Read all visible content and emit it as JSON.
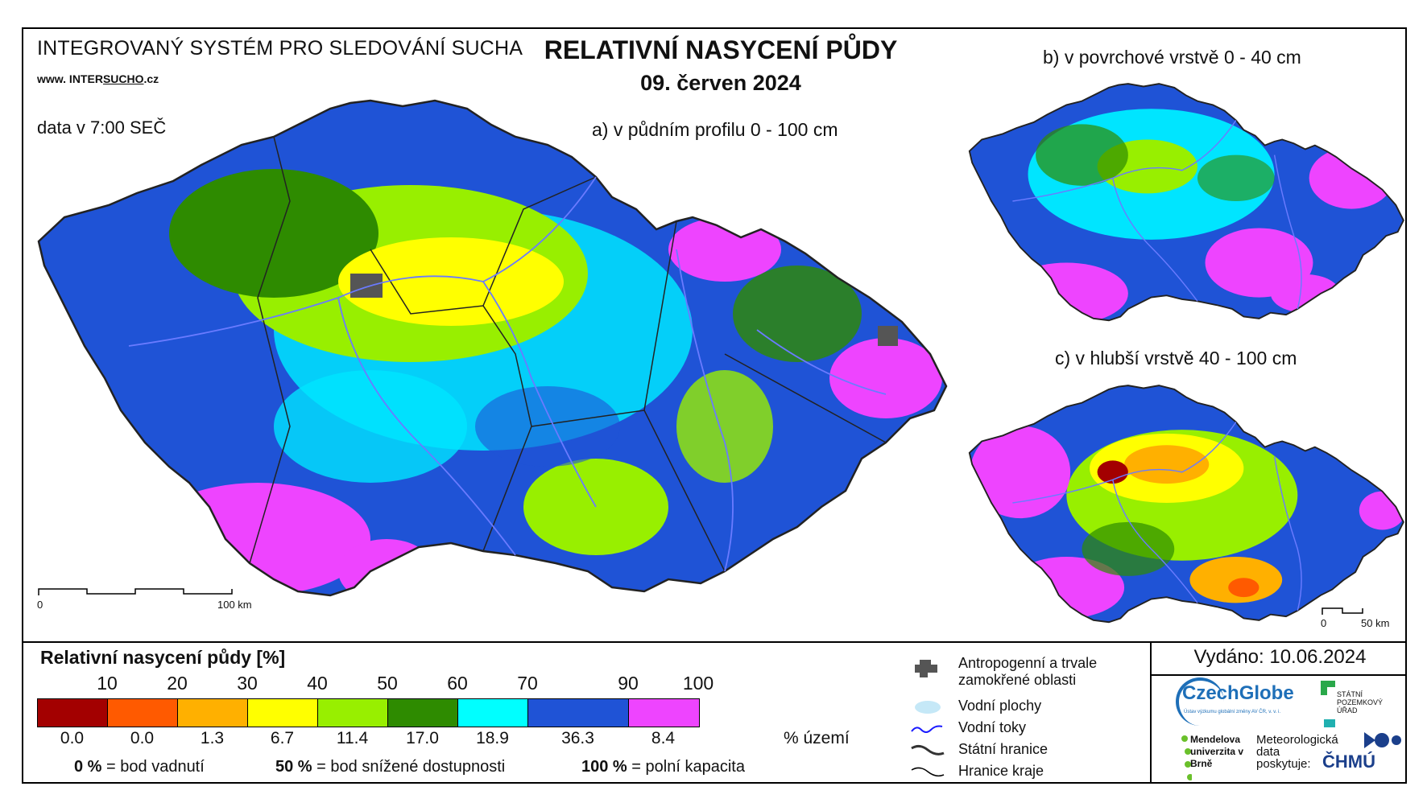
{
  "header": {
    "system_name": "INTEGROVANÝ SYSTÉM PRO SLEDOVÁNÍ SUCHA",
    "web_prefix": "www. INTER",
    "web_underlined": "SUCHO",
    "web_suffix": ".cz",
    "data_time": "data v 7:00 SEČ"
  },
  "title": "RELATIVNÍ NASYCENÍ PŮDY",
  "date": "09. červen 2024",
  "maps": {
    "a_label": "a) v půdním profilu 0 - 100 cm",
    "b_label": "b) v povrchové vrstvě 0 - 40 cm",
    "c_label": "c) v hlubší vrstvě 40 - 100 cm",
    "scale_a_start": "0",
    "scale_a_end": "100 km",
    "scale_c_start": "0",
    "scale_c_end": "50 km"
  },
  "legend": {
    "title": "Relativní nasycení půdy [%]",
    "tick_labels": [
      "10",
      "20",
      "30",
      "40",
      "50",
      "60",
      "70",
      "90",
      "100"
    ],
    "classes": [
      {
        "color": "#a30000",
        "percent": "0.0"
      },
      {
        "color": "#ff5a00",
        "percent": "0.0"
      },
      {
        "color": "#ffb000",
        "percent": "1.3"
      },
      {
        "color": "#ffff00",
        "percent": "6.7"
      },
      {
        "color": "#98ef00",
        "percent": "11.4"
      },
      {
        "color": "#2e8b00",
        "percent": "17.0"
      },
      {
        "color": "#00ffff",
        "percent": "18.9"
      },
      {
        "color": "#1f53d6",
        "percent": "36.3"
      },
      {
        "color": "#ee44ff",
        "percent": "8.4"
      }
    ],
    "unit": "% území",
    "note_0_value": "0 %",
    "note_0_text": "= bod vadnutí",
    "note_50_value": "50 %",
    "note_50_text": "= bod snížené dostupnosti",
    "note_100_value": "100 %",
    "note_100_text": "= polní kapacita"
  },
  "symbols": {
    "urban": "Antropogenní a trvale zamokřené oblasti",
    "water_areas": "Vodní plochy",
    "rivers": "Vodní toky",
    "state_border": "Státní hranice",
    "region_border": "Hranice kraje"
  },
  "issued": "Vydáno: 10.06.2024",
  "logos": {
    "czechglobe": "CzechGlobe",
    "czechglobe_sub": "Ústav výzkumu globální změny AV ČR, v. v. i.",
    "spu": "STÁTNÍ POZEMKOVÝ ÚŘAD",
    "mendelu": "Mendelova univerzita v Brně",
    "meteo": "Meteorologická data poskytuje:",
    "chmu": "ČHMÚ"
  },
  "colors": {
    "background_map": "#1f53d6",
    "border": "#222222",
    "river": "#6a7bff"
  }
}
